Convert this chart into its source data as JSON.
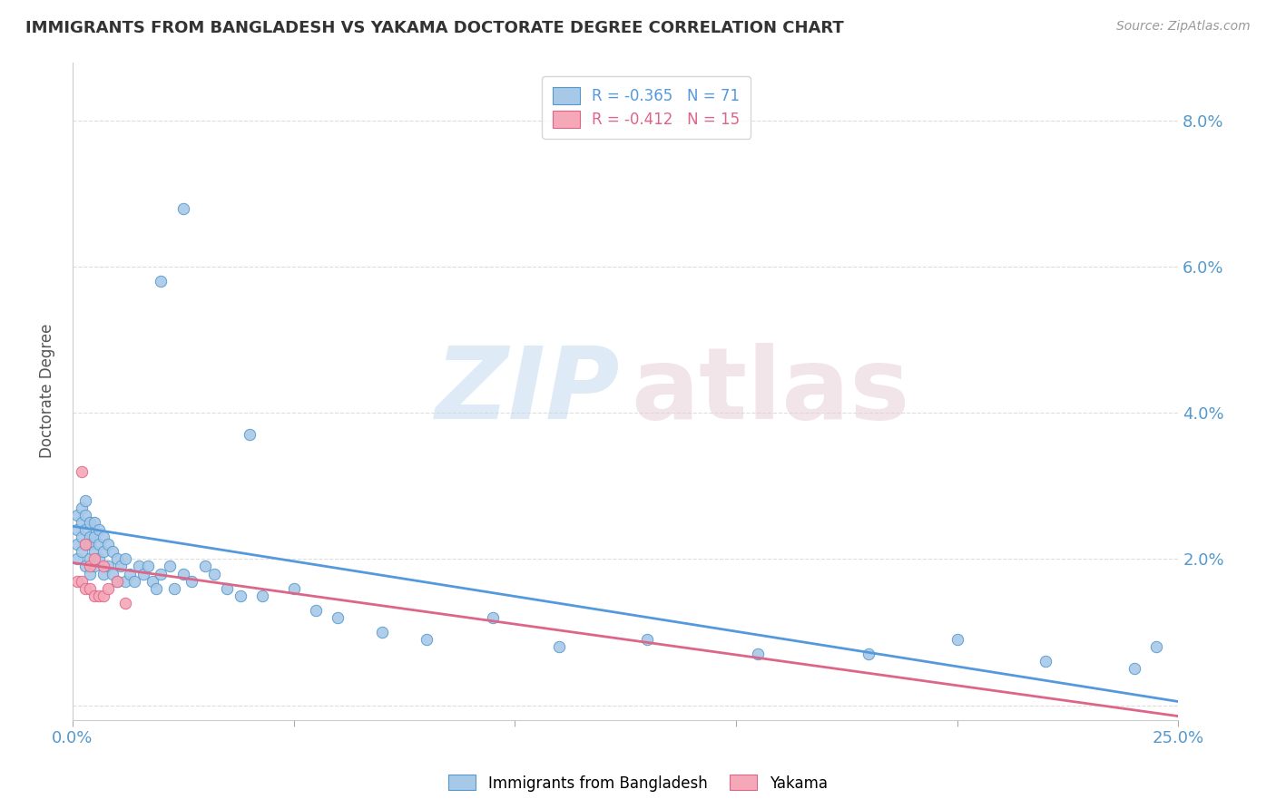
{
  "title": "IMMIGRANTS FROM BANGLADESH VS YAKAMA DOCTORATE DEGREE CORRELATION CHART",
  "source": "Source: ZipAtlas.com",
  "ylabel": "Doctorate Degree",
  "yticks": [
    0.0,
    0.02,
    0.04,
    0.06,
    0.08
  ],
  "ytick_labels": [
    "",
    "2.0%",
    "4.0%",
    "6.0%",
    "8.0%"
  ],
  "xlim": [
    0.0,
    0.25
  ],
  "ylim": [
    -0.002,
    0.088
  ],
  "legend_entry1": "R = -0.365   N = 71",
  "legend_entry2": "R = -0.412   N = 15",
  "legend_label1": "Immigrants from Bangladesh",
  "legend_label2": "Yakama",
  "blue_color": "#a8c8e8",
  "pink_color": "#f4a8b8",
  "blue_edge_color": "#5599cc",
  "pink_edge_color": "#dd6688",
  "blue_line_color": "#5599dd",
  "pink_line_color": "#dd6688",
  "title_color": "#333333",
  "axis_tick_color": "#5599cc",
  "grid_color": "#dddddd",
  "background_color": "#ffffff",
  "marker_size": 80,
  "blue_points_x": [
    0.001,
    0.001,
    0.001,
    0.001,
    0.002,
    0.002,
    0.002,
    0.002,
    0.003,
    0.003,
    0.003,
    0.003,
    0.003,
    0.004,
    0.004,
    0.004,
    0.004,
    0.004,
    0.005,
    0.005,
    0.005,
    0.005,
    0.006,
    0.006,
    0.006,
    0.007,
    0.007,
    0.007,
    0.008,
    0.008,
    0.009,
    0.009,
    0.01,
    0.01,
    0.011,
    0.012,
    0.012,
    0.013,
    0.014,
    0.015,
    0.016,
    0.017,
    0.018,
    0.019,
    0.02,
    0.022,
    0.023,
    0.025,
    0.027,
    0.03,
    0.032,
    0.035,
    0.038,
    0.04,
    0.043,
    0.05,
    0.055,
    0.06,
    0.07,
    0.08,
    0.095,
    0.11,
    0.13,
    0.155,
    0.18,
    0.2,
    0.22,
    0.24,
    0.245,
    0.02,
    0.025
  ],
  "blue_points_y": [
    0.026,
    0.024,
    0.022,
    0.02,
    0.027,
    0.025,
    0.023,
    0.021,
    0.028,
    0.026,
    0.024,
    0.022,
    0.019,
    0.025,
    0.023,
    0.022,
    0.02,
    0.018,
    0.025,
    0.023,
    0.021,
    0.019,
    0.024,
    0.022,
    0.02,
    0.023,
    0.021,
    0.018,
    0.022,
    0.019,
    0.021,
    0.018,
    0.02,
    0.017,
    0.019,
    0.02,
    0.017,
    0.018,
    0.017,
    0.019,
    0.018,
    0.019,
    0.017,
    0.016,
    0.018,
    0.019,
    0.016,
    0.018,
    0.017,
    0.019,
    0.018,
    0.016,
    0.015,
    0.037,
    0.015,
    0.016,
    0.013,
    0.012,
    0.01,
    0.009,
    0.012,
    0.008,
    0.009,
    0.007,
    0.007,
    0.009,
    0.006,
    0.005,
    0.008,
    0.058,
    0.068
  ],
  "pink_points_x": [
    0.001,
    0.002,
    0.002,
    0.003,
    0.003,
    0.004,
    0.004,
    0.005,
    0.005,
    0.006,
    0.007,
    0.007,
    0.008,
    0.01,
    0.012
  ],
  "pink_points_y": [
    0.017,
    0.032,
    0.017,
    0.022,
    0.016,
    0.019,
    0.016,
    0.02,
    0.015,
    0.015,
    0.019,
    0.015,
    0.016,
    0.017,
    0.014
  ],
  "blue_trend_x": [
    0.0,
    0.25
  ],
  "blue_trend_y": [
    0.0245,
    0.0005
  ],
  "pink_trend_x": [
    0.0,
    0.25
  ],
  "pink_trend_y": [
    0.0195,
    -0.0015
  ]
}
